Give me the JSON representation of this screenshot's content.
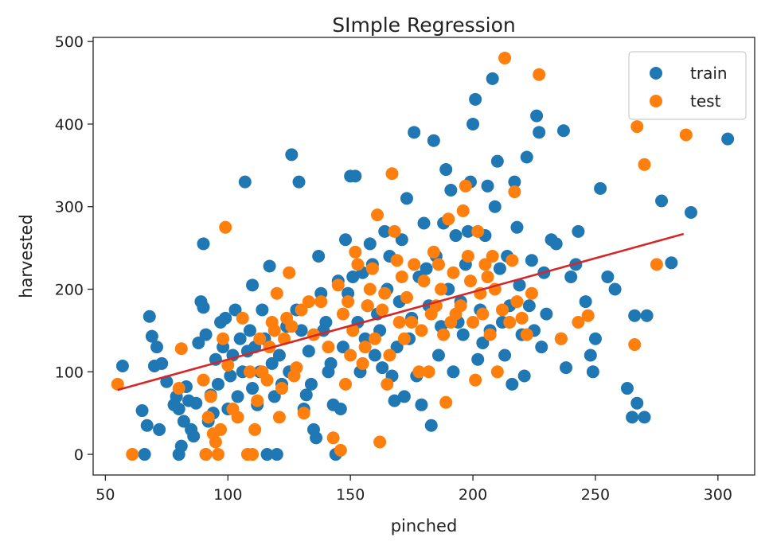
{
  "chart_data": {
    "type": "scatter",
    "title": "SImple Regression",
    "xlabel": "pinched",
    "ylabel": "harvested",
    "xlim": [
      45,
      315
    ],
    "ylim": [
      -25,
      505
    ],
    "xticks": [
      50,
      100,
      150,
      200,
      250,
      300
    ],
    "yticks": [
      0,
      100,
      200,
      300,
      400,
      500
    ],
    "grid": false,
    "legend": "top-right",
    "colors": {
      "train": "#1f77b4",
      "test": "#ff7f0e",
      "fit": "#d62728"
    },
    "series": [
      {
        "name": "train",
        "points": [
          [
            57,
            107
          ],
          [
            65,
            53
          ],
          [
            66,
            0
          ],
          [
            67,
            35
          ],
          [
            68,
            167
          ],
          [
            69,
            143
          ],
          [
            70,
            107
          ],
          [
            71,
            130
          ],
          [
            72,
            30
          ],
          [
            73,
            110
          ],
          [
            75,
            88
          ],
          [
            78,
            60
          ],
          [
            79,
            70
          ],
          [
            80,
            0
          ],
          [
            80,
            55
          ],
          [
            81,
            10
          ],
          [
            82,
            40
          ],
          [
            83,
            82
          ],
          [
            84,
            65
          ],
          [
            85,
            30
          ],
          [
            86,
            22
          ],
          [
            87,
            62
          ],
          [
            88,
            135
          ],
          [
            89,
            185
          ],
          [
            90,
            255
          ],
          [
            90,
            178
          ],
          [
            91,
            0
          ],
          [
            91,
            145
          ],
          [
            92,
            40
          ],
          [
            93,
            72
          ],
          [
            94,
            50
          ],
          [
            95,
            115
          ],
          [
            96,
            85
          ],
          [
            97,
            160
          ],
          [
            98,
            130
          ],
          [
            99,
            165
          ],
          [
            100,
            55
          ],
          [
            101,
            95
          ],
          [
            102,
            120
          ],
          [
            103,
            175
          ],
          [
            104,
            70
          ],
          [
            105,
            140
          ],
          [
            106,
            100
          ],
          [
            107,
            330
          ],
          [
            108,
            125
          ],
          [
            109,
            150
          ],
          [
            110,
            80
          ],
          [
            110,
            205
          ],
          [
            111,
            130
          ],
          [
            112,
            60
          ],
          [
            113,
            100
          ],
          [
            114,
            175
          ],
          [
            115,
            140
          ],
          [
            116,
            0
          ],
          [
            117,
            228
          ],
          [
            118,
            110
          ],
          [
            119,
            70
          ],
          [
            120,
            0
          ],
          [
            121,
            120
          ],
          [
            122,
            85
          ],
          [
            124,
            155
          ],
          [
            125,
            100
          ],
          [
            126,
            363
          ],
          [
            128,
            175
          ],
          [
            129,
            330
          ],
          [
            130,
            150
          ],
          [
            131,
            55
          ],
          [
            132,
            72
          ],
          [
            133,
            125
          ],
          [
            134,
            85
          ],
          [
            135,
            30
          ],
          [
            136,
            20
          ],
          [
            137,
            240
          ],
          [
            138,
            195
          ],
          [
            139,
            150
          ],
          [
            140,
            160
          ],
          [
            141,
            100
          ],
          [
            142,
            110
          ],
          [
            143,
            60
          ],
          [
            144,
            0
          ],
          [
            145,
            210
          ],
          [
            146,
            55
          ],
          [
            147,
            130
          ],
          [
            148,
            260
          ],
          [
            149,
            195
          ],
          [
            150,
            337
          ],
          [
            151,
            215
          ],
          [
            152,
            337
          ],
          [
            153,
            160
          ],
          [
            154,
            100
          ],
          [
            155,
            220
          ],
          [
            156,
            140
          ],
          [
            157,
            180
          ],
          [
            158,
            255
          ],
          [
            159,
            230
          ],
          [
            160,
            120
          ],
          [
            161,
            170
          ],
          [
            162,
            150
          ],
          [
            163,
            105
          ],
          [
            164,
            270
          ],
          [
            165,
            200
          ],
          [
            166,
            240
          ],
          [
            167,
            95
          ],
          [
            168,
            65
          ],
          [
            169,
            130
          ],
          [
            170,
            185
          ],
          [
            171,
            260
          ],
          [
            172,
            70
          ],
          [
            173,
            310
          ],
          [
            174,
            140
          ],
          [
            175,
            165
          ],
          [
            176,
            390
          ],
          [
            177,
            95
          ],
          [
            178,
            215
          ],
          [
            179,
            60
          ],
          [
            180,
            280
          ],
          [
            181,
            225
          ],
          [
            182,
            180
          ],
          [
            183,
            35
          ],
          [
            184,
            380
          ],
          [
            185,
            240
          ],
          [
            186,
            120
          ],
          [
            187,
            155
          ],
          [
            188,
            280
          ],
          [
            189,
            345
          ],
          [
            190,
            200
          ],
          [
            191,
            320
          ],
          [
            192,
            100
          ],
          [
            193,
            265
          ],
          [
            194,
            160
          ],
          [
            195,
            185
          ],
          [
            196,
            145
          ],
          [
            197,
            230
          ],
          [
            198,
            270
          ],
          [
            199,
            330
          ],
          [
            200,
            400
          ],
          [
            201,
            430
          ],
          [
            202,
            115
          ],
          [
            203,
            175
          ],
          [
            204,
            135
          ],
          [
            205,
            265
          ],
          [
            206,
            325
          ],
          [
            207,
            150
          ],
          [
            208,
            455
          ],
          [
            209,
            300
          ],
          [
            210,
            355
          ],
          [
            211,
            225
          ],
          [
            212,
            160
          ],
          [
            213,
            120
          ],
          [
            214,
            240
          ],
          [
            215,
            180
          ],
          [
            216,
            85
          ],
          [
            217,
            330
          ],
          [
            218,
            275
          ],
          [
            219,
            205
          ],
          [
            220,
            145
          ],
          [
            221,
            95
          ],
          [
            222,
            360
          ],
          [
            223,
            180
          ],
          [
            224,
            235
          ],
          [
            225,
            150
          ],
          [
            226,
            410
          ],
          [
            227,
            390
          ],
          [
            228,
            130
          ],
          [
            229,
            220
          ],
          [
            230,
            170
          ],
          [
            232,
            260
          ],
          [
            234,
            255
          ],
          [
            236,
            140
          ],
          [
            237,
            392
          ],
          [
            238,
            105
          ],
          [
            240,
            215
          ],
          [
            242,
            230
          ],
          [
            243,
            270
          ],
          [
            246,
            185
          ],
          [
            248,
            120
          ],
          [
            249,
            100
          ],
          [
            250,
            140
          ],
          [
            252,
            322
          ],
          [
            255,
            215
          ],
          [
            258,
            200
          ],
          [
            263,
            80
          ],
          [
            265,
            45
          ],
          [
            266,
            168
          ],
          [
            267,
            62
          ],
          [
            270,
            45
          ],
          [
            271,
            168
          ],
          [
            277,
            307
          ],
          [
            281,
            232
          ],
          [
            289,
            293
          ],
          [
            304,
            382
          ]
        ]
      },
      {
        "name": "test",
        "points": [
          [
            55,
            85
          ],
          [
            61,
            0
          ],
          [
            80,
            80
          ],
          [
            81,
            128
          ],
          [
            90,
            90
          ],
          [
            91,
            0
          ],
          [
            92,
            45
          ],
          [
            93,
            70
          ],
          [
            94,
            25
          ],
          [
            95,
            15
          ],
          [
            96,
            0
          ],
          [
            97,
            30
          ],
          [
            98,
            140
          ],
          [
            99,
            275
          ],
          [
            100,
            108
          ],
          [
            102,
            55
          ],
          [
            104,
            45
          ],
          [
            106,
            165
          ],
          [
            108,
            0
          ],
          [
            109,
            100
          ],
          [
            110,
            0
          ],
          [
            111,
            30
          ],
          [
            112,
            65
          ],
          [
            113,
            140
          ],
          [
            114,
            100
          ],
          [
            116,
            90
          ],
          [
            117,
            130
          ],
          [
            118,
            160
          ],
          [
            119,
            150
          ],
          [
            120,
            195
          ],
          [
            121,
            45
          ],
          [
            122,
            80
          ],
          [
            123,
            140
          ],
          [
            124,
            165
          ],
          [
            125,
            220
          ],
          [
            126,
            155
          ],
          [
            127,
            95
          ],
          [
            128,
            105
          ],
          [
            130,
            175
          ],
          [
            131,
            50
          ],
          [
            133,
            185
          ],
          [
            135,
            145
          ],
          [
            138,
            185
          ],
          [
            141,
            130
          ],
          [
            143,
            20
          ],
          [
            145,
            205
          ],
          [
            146,
            5
          ],
          [
            147,
            170
          ],
          [
            148,
            85
          ],
          [
            149,
            185
          ],
          [
            150,
            120
          ],
          [
            151,
            150
          ],
          [
            152,
            245
          ],
          [
            153,
            230
          ],
          [
            155,
            110
          ],
          [
            156,
            130
          ],
          [
            157,
            180
          ],
          [
            158,
            200
          ],
          [
            159,
            225
          ],
          [
            160,
            140
          ],
          [
            161,
            290
          ],
          [
            162,
            15
          ],
          [
            163,
            175
          ],
          [
            164,
            195
          ],
          [
            165,
            85
          ],
          [
            166,
            120
          ],
          [
            167,
            340
          ],
          [
            168,
            270
          ],
          [
            169,
            235
          ],
          [
            170,
            160
          ],
          [
            171,
            215
          ],
          [
            172,
            140
          ],
          [
            173,
            190
          ],
          [
            175,
            160
          ],
          [
            176,
            230
          ],
          [
            178,
            100
          ],
          [
            179,
            150
          ],
          [
            180,
            210
          ],
          [
            182,
            100
          ],
          [
            183,
            170
          ],
          [
            184,
            245
          ],
          [
            185,
            180
          ],
          [
            186,
            230
          ],
          [
            187,
            200
          ],
          [
            188,
            145
          ],
          [
            189,
            63
          ],
          [
            190,
            285
          ],
          [
            191,
            160
          ],
          [
            192,
            220
          ],
          [
            193,
            170
          ],
          [
            195,
            180
          ],
          [
            196,
            295
          ],
          [
            197,
            325
          ],
          [
            198,
            240
          ],
          [
            199,
            210
          ],
          [
            200,
            160
          ],
          [
            201,
            90
          ],
          [
            202,
            270
          ],
          [
            203,
            195
          ],
          [
            204,
            170
          ],
          [
            205,
            230
          ],
          [
            206,
            215
          ],
          [
            207,
            145
          ],
          [
            208,
            240
          ],
          [
            209,
            200
          ],
          [
            210,
            100
          ],
          [
            212,
            175
          ],
          [
            213,
            480
          ],
          [
            215,
            160
          ],
          [
            216,
            235
          ],
          [
            217,
            318
          ],
          [
            218,
            185
          ],
          [
            220,
            165
          ],
          [
            222,
            145
          ],
          [
            224,
            195
          ],
          [
            227,
            460
          ],
          [
            236,
            140
          ],
          [
            243,
            160
          ],
          [
            247,
            168
          ],
          [
            266,
            133
          ],
          [
            267,
            397
          ],
          [
            270,
            351
          ],
          [
            275,
            230
          ],
          [
            287,
            387
          ]
        ]
      }
    ],
    "fit_line": {
      "x": [
        55,
        286
      ],
      "y": [
        78,
        267
      ]
    }
  }
}
